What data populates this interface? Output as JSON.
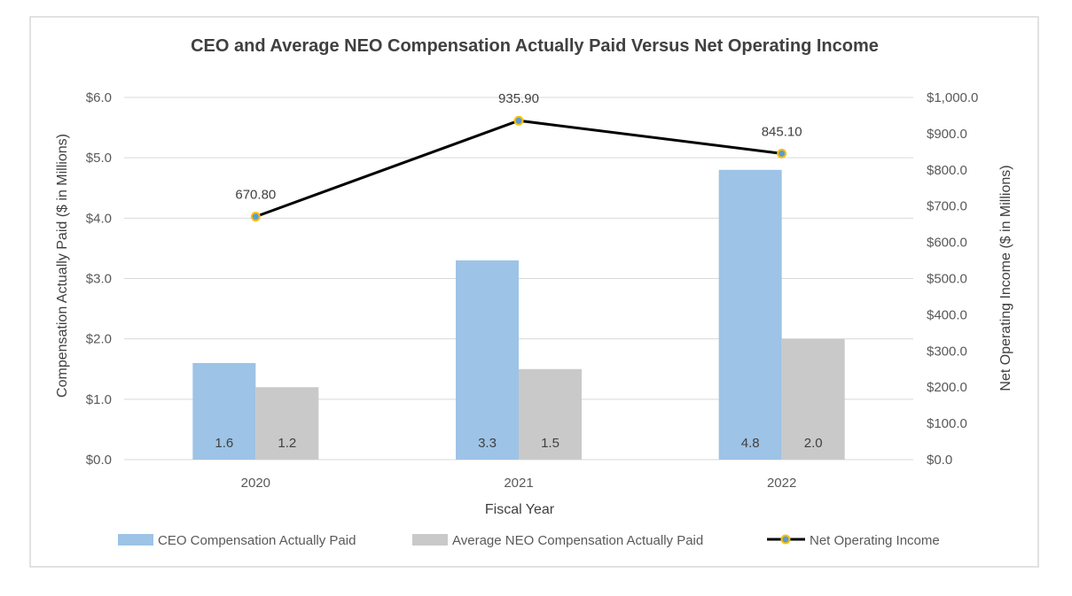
{
  "colors": {
    "ceo": "#9dc3e6",
    "neo": "#c9c9c9",
    "line": "#000000",
    "marker_fill": "#5b9bd5",
    "marker_edge": "#ffc000",
    "grid": "#d9d9d9",
    "border": "#d9d9d9"
  },
  "chart_data": {
    "type": "bar",
    "title": "CEO and Average NEO Compensation  Actually Paid Versus Net Operating Income",
    "xlabel": "Fiscal Year",
    "ylabel": "Compensation Actually Paid ($ in Millions)",
    "y2label": "Net Operating Income ($ in Millions)",
    "categories": [
      "2020",
      "2021",
      "2022"
    ],
    "ylim": [
      0,
      6
    ],
    "y2lim": [
      0,
      1000
    ],
    "yticks": [
      {
        "value": 0,
        "label": "$0.0"
      },
      {
        "value": 1,
        "label": "$1.0"
      },
      {
        "value": 2,
        "label": "$2.0"
      },
      {
        "value": 3,
        "label": "$3.0"
      },
      {
        "value": 4,
        "label": "$4.0"
      },
      {
        "value": 5,
        "label": "$5.0"
      },
      {
        "value": 6,
        "label": "$6.0"
      }
    ],
    "y2ticks": [
      {
        "value": 0,
        "label": "$0.0"
      },
      {
        "value": 100,
        "label": "$100.0"
      },
      {
        "value": 200,
        "label": "$200.0"
      },
      {
        "value": 300,
        "label": "$300.0"
      },
      {
        "value": 400,
        "label": "$400.0"
      },
      {
        "value": 500,
        "label": "$500.0"
      },
      {
        "value": 600,
        "label": "$600.0"
      },
      {
        "value": 700,
        "label": "$700.0"
      },
      {
        "value": 800,
        "label": "$800.0"
      },
      {
        "value": 900,
        "label": "$900.0"
      },
      {
        "value": 1000,
        "label": "$1,000.0"
      }
    ],
    "series": [
      {
        "name": "CEO Compensation Actually Paid",
        "type": "bar",
        "axis": "left",
        "values": [
          1.6,
          3.3,
          4.8
        ],
        "labels": [
          "1.6",
          "3.3",
          "4.8"
        ]
      },
      {
        "name": "Average NEO Compensation Actually Paid",
        "type": "bar",
        "axis": "left",
        "values": [
          1.2,
          1.5,
          2.0
        ],
        "labels": [
          "1.2",
          "1.5",
          "2.0"
        ]
      },
      {
        "name": "Net Operating Income",
        "type": "line",
        "axis": "right",
        "values": [
          670.8,
          935.9,
          845.1
        ],
        "labels": [
          "670.80",
          "935.90",
          "845.10"
        ]
      }
    ],
    "legend_position": "bottom"
  }
}
